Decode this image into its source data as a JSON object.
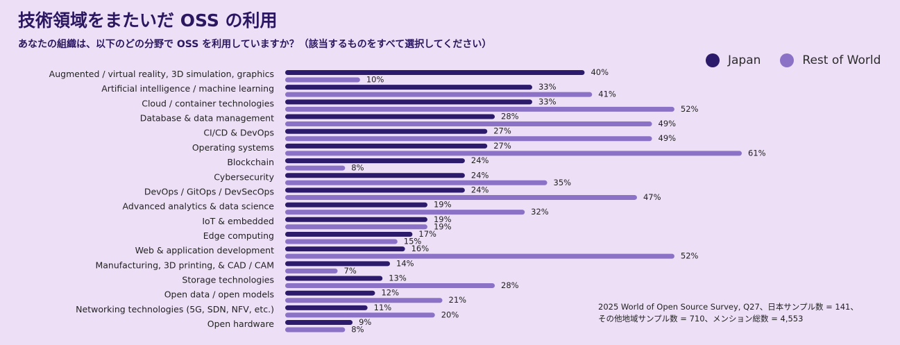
{
  "title": "技術領域をまたいだ OSS の利用",
  "subtitle": "あなたの組織は、以下のどの分野で OSS を利用していますか？（該当するものをすべて選択してください）",
  "legend": {
    "japan": "Japan",
    "rest": "Rest of World"
  },
  "source": {
    "line1": "2025 World of Open Source Survey, Q27、日本サンプル数 = 141、",
    "line2": "その他地域サンプル数 = 710、メンション総数 = 4,553"
  },
  "colors": {
    "japan": "#2c1a6b",
    "rest": "#8b72c6",
    "background": "#ecdff6"
  },
  "chart_data": {
    "type": "bar",
    "orientation": "horizontal",
    "title": "技術領域をまたいだ OSS の利用",
    "xlabel": "",
    "ylabel": "",
    "xlim": [
      0,
      61
    ],
    "value_suffix": "%",
    "categories": [
      "Augmented / virtual reality, 3D simulation, graphics",
      "Artificial intelligence / machine learning",
      "Cloud / container technologies",
      "Database & data management",
      "CI/CD & DevOps",
      "Operating systems",
      "Blockchain",
      "Cybersecurity",
      "DevOps / GitOps / DevSecOps",
      "Advanced analytics & data science",
      "IoT & embedded",
      "Edge computing",
      "Web & application development",
      "Manufacturing, 3D printing, & CAD / CAM",
      "Storage technologies",
      "Open data / open models",
      "Networking technologies (5G, SDN, NFV, etc.)",
      "Open hardware"
    ],
    "series": [
      {
        "name": "Japan",
        "values": [
          40,
          33,
          33,
          28,
          27,
          27,
          24,
          24,
          24,
          19,
          19,
          17,
          16,
          14,
          13,
          12,
          11,
          9
        ]
      },
      {
        "name": "Rest of World",
        "values": [
          10,
          41,
          52,
          49,
          49,
          61,
          8,
          35,
          47,
          32,
          19,
          15,
          52,
          7,
          28,
          21,
          20,
          8
        ]
      }
    ]
  }
}
